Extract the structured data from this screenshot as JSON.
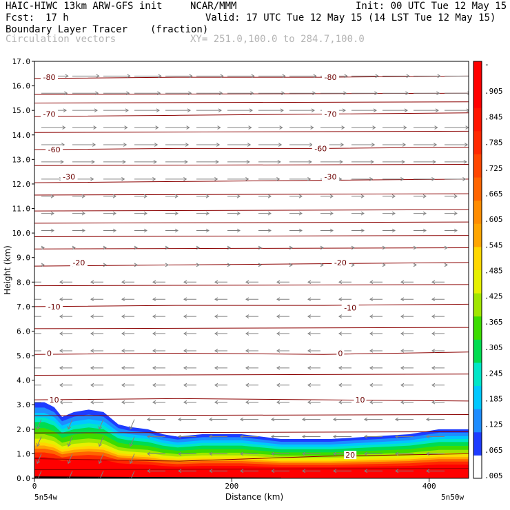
{
  "header": {
    "model": "HAIC-HIWC 13km ARW-GFS init",
    "org": "NCAR/MMM",
    "init": "Init: 00 UTC Tue 12 May 15",
    "fcst_label": "Fcst:",
    "fcst_value": "17 h",
    "valid": "Valid: 17 UTC Tue 12 May 15 (14 LST Tue 12 May 15)",
    "field": "Boundary Layer Tracer",
    "units": "(fraction)",
    "overlay": "Circulation vectors",
    "xy": "XY= 251.0,100.0 to 284.7,100.0"
  },
  "colors": {
    "contour": "#8b0000",
    "vector": "#808080",
    "ground": "#000000"
  },
  "chart_data": {
    "type": "heatmap",
    "xlabel": "Distance (km)",
    "ylabel": "Height (km)",
    "xlim": [
      0,
      440
    ],
    "ylim": [
      0.0,
      17.0
    ],
    "x_ticks": [
      "0",
      "200",
      "400"
    ],
    "y_ticks": [
      "0.0",
      "1.0",
      "2.0",
      "3.0",
      "4.0",
      "5.0",
      "6.0",
      "7.0",
      "8.0",
      "9.0",
      "10.0",
      "11.0",
      "12.0",
      "13.0",
      "14.0",
      "15.0",
      "16.0",
      "17.0"
    ],
    "x_endpoints": {
      "left": "5n54w",
      "right": "5n50w"
    },
    "colorbar": {
      "labels": [
        ".005",
        ".065",
        ".125",
        ".185",
        ".245",
        ".305",
        ".365",
        ".425",
        ".485",
        ".545",
        ".605",
        ".665",
        ".725",
        ".785",
        ".845",
        ".905",
        "-"
      ],
      "colors": [
        "#ffffff",
        "#1e3cff",
        "#1e8cff",
        "#00c8ff",
        "#00e6c8",
        "#00dc50",
        "#3cdc00",
        "#a0e600",
        "#e6f000",
        "#ffd700",
        "#ffa500",
        "#ff8c00",
        "#ff6400",
        "#ff4600",
        "#ff2800",
        "#ff1400",
        "#ff0000",
        "#ff0000"
      ]
    },
    "tracer_top_km": [
      [
        0,
        3.1
      ],
      [
        10,
        3.1
      ],
      [
        20,
        2.9
      ],
      [
        28,
        2.5
      ],
      [
        40,
        2.7
      ],
      [
        55,
        2.8
      ],
      [
        70,
        2.7
      ],
      [
        85,
        2.2
      ],
      [
        95,
        2.1
      ],
      [
        115,
        2.0
      ],
      [
        130,
        1.8
      ],
      [
        145,
        1.7
      ],
      [
        170,
        1.8
      ],
      [
        210,
        1.8
      ],
      [
        250,
        1.6
      ],
      [
        300,
        1.6
      ],
      [
        340,
        1.7
      ],
      [
        380,
        1.8
      ],
      [
        410,
        2.0
      ],
      [
        440,
        2.0
      ]
    ],
    "temperature_contours": [
      {
        "label": "20",
        "y": [
          0.8,
          0.7,
          0.9,
          1.0
        ],
        "label_pos": [
          [
            320,
            0.95
          ]
        ]
      },
      {
        "label": "10",
        "y": [
          3.2,
          3.25,
          3.2,
          3.15
        ],
        "label_pos": [
          [
            20,
            3.2
          ],
          [
            330,
            3.2
          ]
        ]
      },
      {
        "label": "0",
        "y": [
          5.05,
          5.1,
          5.05,
          5.15
        ],
        "label_pos": [
          [
            15,
            5.1
          ],
          [
            310,
            5.1
          ]
        ]
      },
      {
        "label": "-10",
        "y": [
          7.0,
          7.05,
          7.05,
          7.1
        ],
        "label_pos": [
          [
            20,
            7.0
          ],
          [
            320,
            6.95
          ]
        ]
      },
      {
        "label": "-20",
        "y": [
          8.65,
          8.7,
          8.75,
          8.8
        ],
        "label_pos": [
          [
            45,
            8.8
          ],
          [
            310,
            8.8
          ]
        ]
      },
      {
        "label": "-30",
        "y": [
          12.05,
          12.1,
          12.15,
          12.2
        ],
        "label_pos": [
          [
            35,
            12.3
          ],
          [
            300,
            12.3
          ]
        ]
      },
      {
        "label": "-60",
        "y": [
          13.4,
          13.45,
          13.45,
          13.5
        ],
        "label_pos": [
          [
            20,
            13.4
          ],
          [
            290,
            13.45
          ]
        ]
      },
      {
        "label": "-70",
        "y": [
          14.75,
          14.8,
          14.85,
          14.9
        ],
        "label_pos": [
          [
            15,
            14.85
          ],
          [
            300,
            14.85
          ]
        ]
      },
      {
        "label": "-80",
        "y": [
          16.3,
          16.35,
          16.35,
          16.4
        ],
        "label_pos": [
          [
            15,
            16.35
          ],
          [
            300,
            16.35
          ]
        ]
      }
    ],
    "extra_isotherms_km": [
      0.35,
      1.85,
      2.55,
      4.2,
      6.1,
      7.85,
      9.35,
      9.85,
      10.4,
      10.9,
      11.55,
      12.75,
      14.1,
      15.3,
      15.65
    ]
  }
}
